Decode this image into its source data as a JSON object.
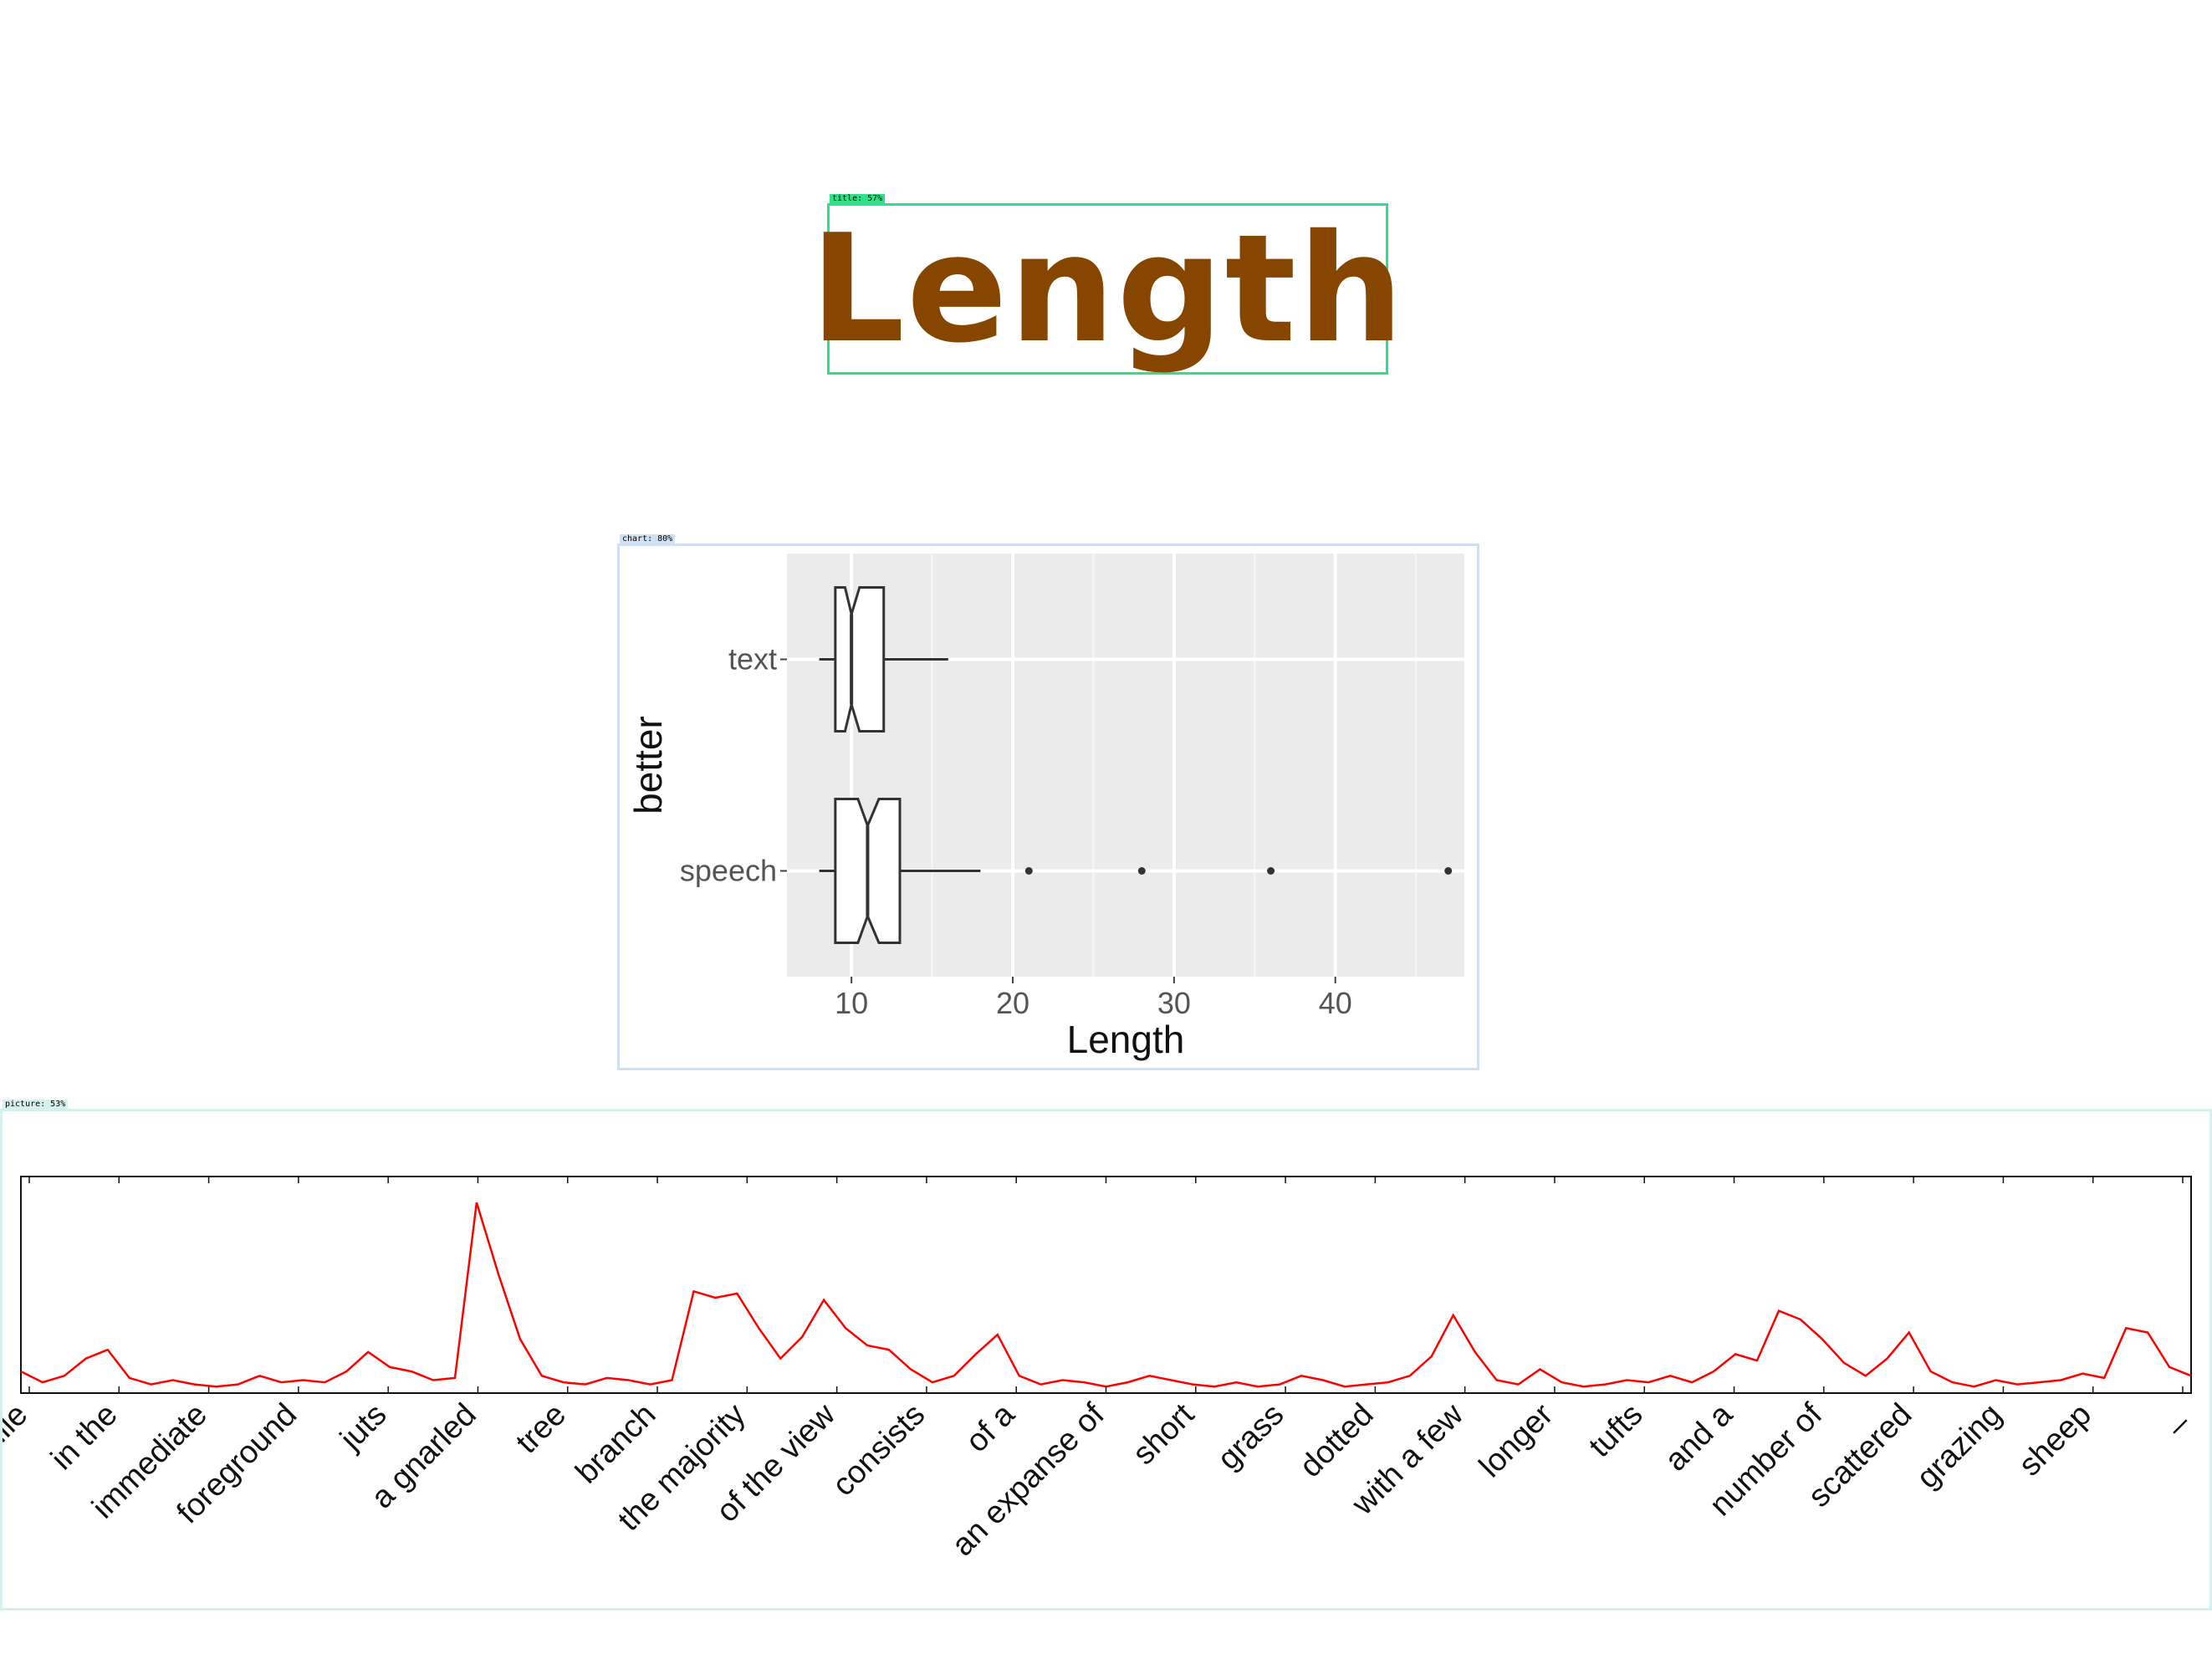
{
  "detections": {
    "title_tag": "title: 57%",
    "chart_tag": "chart: 80%",
    "picture_tag": "picture: 53%",
    "title_color": "#2fe08a",
    "chart_color": "#cfe0f2",
    "picture_color": "#d5f1ee"
  },
  "title": {
    "text": "Length",
    "color": "#874600"
  },
  "chart_data": [
    {
      "type": "boxplot",
      "orientation": "horizontal",
      "notched": true,
      "xlabel": "Length",
      "ylabel": "better",
      "xlim": [
        6,
        48
      ],
      "xticks": [
        10,
        20,
        30,
        40
      ],
      "grid": true,
      "panel_color": "#ebebeb",
      "categories": [
        "speech",
        "text"
      ],
      "boxes": [
        {
          "name": "speech",
          "whisker_low": 8,
          "q1": 9,
          "notch_low": 10.4,
          "median": 11,
          "notch_high": 11.7,
          "q3": 13,
          "whisker_high": 18,
          "outliers": [
            21,
            28,
            36,
            47
          ]
        },
        {
          "name": "text",
          "whisker_low": 8,
          "q1": 9,
          "notch_low": 9.6,
          "median": 10,
          "notch_high": 10.5,
          "q3": 12,
          "whisker_high": 16,
          "outliers": []
        }
      ]
    },
    {
      "type": "line",
      "line_color": "#ff0000",
      "ylim": [
        0,
        1
      ],
      "x": [
        0,
        3,
        6,
        9,
        12,
        15,
        18,
        21,
        24,
        27,
        30,
        33,
        36,
        39,
        42,
        45,
        48,
        51,
        54,
        57,
        60,
        63,
        66,
        69,
        72,
        75,
        78,
        81,
        84,
        87,
        90,
        93,
        96,
        99,
        102,
        105,
        108,
        111,
        114,
        117,
        120,
        123,
        126,
        129,
        132,
        135,
        138,
        141,
        144,
        147,
        150,
        153,
        156,
        159,
        162,
        165,
        168,
        171,
        174,
        177,
        180,
        183,
        186,
        189,
        192,
        195,
        198,
        201,
        204,
        207,
        210,
        213,
        216,
        219,
        222,
        225,
        228,
        231,
        234,
        237,
        240,
        243,
        246,
        249,
        252,
        255,
        258,
        261,
        264,
        267,
        270,
        273,
        276,
        279,
        282,
        285,
        288,
        291,
        294,
        297,
        300
      ],
      "y": [
        0.1,
        0.05,
        0.08,
        0.16,
        0.2,
        0.07,
        0.04,
        0.06,
        0.04,
        0.03,
        0.04,
        0.08,
        0.05,
        0.06,
        0.05,
        0.1,
        0.19,
        0.12,
        0.1,
        0.06,
        0.07,
        0.88,
        0.55,
        0.25,
        0.08,
        0.05,
        0.04,
        0.07,
        0.06,
        0.04,
        0.06,
        0.47,
        0.44,
        0.46,
        0.3,
        0.16,
        0.26,
        0.43,
        0.3,
        0.22,
        0.2,
        0.11,
        0.05,
        0.08,
        0.18,
        0.27,
        0.08,
        0.04,
        0.06,
        0.05,
        0.03,
        0.05,
        0.08,
        0.06,
        0.04,
        0.03,
        0.05,
        0.03,
        0.04,
        0.08,
        0.06,
        0.03,
        0.04,
        0.05,
        0.08,
        0.17,
        0.36,
        0.19,
        0.06,
        0.04,
        0.11,
        0.05,
        0.03,
        0.04,
        0.06,
        0.05,
        0.08,
        0.05,
        0.1,
        0.18,
        0.15,
        0.38,
        0.34,
        0.25,
        0.14,
        0.08,
        0.16,
        0.28,
        0.1,
        0.05,
        0.03,
        0.06,
        0.04,
        0.05,
        0.06,
        0.09,
        0.07,
        0.3,
        0.28,
        0.12,
        0.08
      ],
      "tick_labels": [
        "while",
        "in the",
        "immediate",
        "foreground",
        "juts",
        "a gnarled",
        "tree",
        "branch",
        "the majority",
        "of the view",
        "consists",
        "of a",
        "an expanse of",
        "short",
        "grass",
        "dotted",
        "with a few",
        "longer",
        "tufts",
        "and a",
        "number of",
        "scattered",
        "grazing",
        "sheep",
        "_"
      ]
    }
  ]
}
